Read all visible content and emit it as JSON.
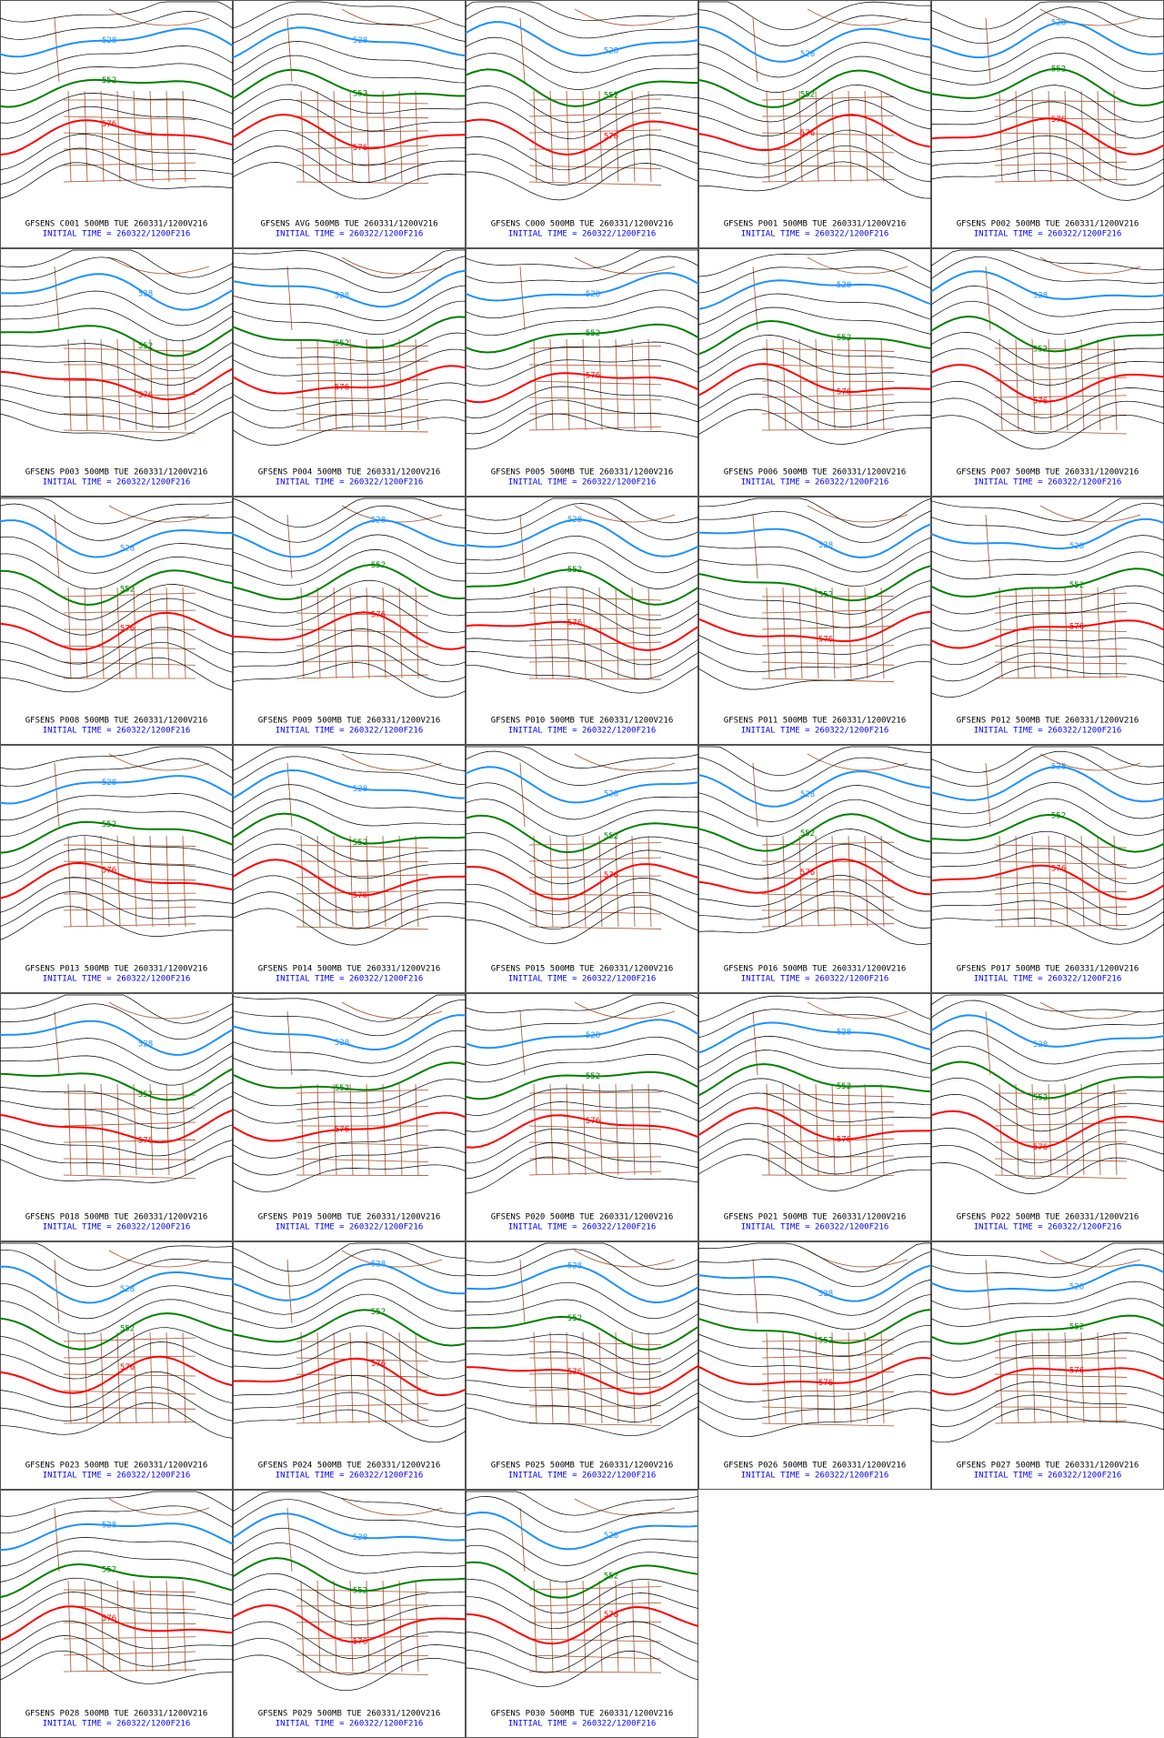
{
  "panels": [
    {
      "title": "GFSENS C001 500MB TUE 260331/1200V216",
      "init": "INITIAL TIME = 260322/1200F216",
      "contours": [
        "528",
        "552",
        "576"
      ]
    },
    {
      "title": "GFSENS AVG 500MB TUE 260331/1200V216",
      "init": "INITIAL TIME = 260322/1200F216",
      "contours": [
        "528",
        "552",
        "576"
      ]
    },
    {
      "title": "GFSENS C000 500MB TUE 260331/1200V216",
      "init": "INITIAL TIME = 260322/1200F216",
      "contours": [
        "528",
        "552",
        "576"
      ]
    },
    {
      "title": "GFSENS P001 500MB TUE 260331/1200V216",
      "init": "INITIAL TIME = 260322/1200F216",
      "contours": [
        "528",
        "552",
        "576"
      ]
    },
    {
      "title": "GFSENS P002 500MB TUE 260331/1200V216",
      "init": "INITIAL TIME = 260322/1200F216",
      "contours": [
        "528",
        "552",
        "576"
      ]
    },
    {
      "title": "GFSENS P003 500MB TUE 260331/1200V216",
      "init": "INITIAL TIME = 260322/1200F216",
      "contours": [
        "528",
        "552",
        "576"
      ]
    },
    {
      "title": "GFSENS P004 500MB TUE 260331/1200V216",
      "init": "INITIAL TIME = 260322/1200F216",
      "contours": [
        "528",
        "552",
        "576"
      ]
    },
    {
      "title": "GFSENS P005 500MB TUE 260331/1200V216",
      "init": "INITIAL TIME = 260322/1200F216",
      "contours": [
        "528",
        "552",
        "576"
      ]
    },
    {
      "title": "GFSENS P006 500MB TUE 260331/1200V216",
      "init": "INITIAL TIME = 260322/1200F216",
      "contours": [
        "528",
        "552",
        "576"
      ]
    },
    {
      "title": "GFSENS P007 500MB TUE 260331/1200V216",
      "init": "INITIAL TIME = 260322/1200F216",
      "contours": [
        "528",
        "552",
        "576"
      ]
    },
    {
      "title": "GFSENS P008 500MB TUE 260331/1200V216",
      "init": "INITIAL TIME = 260322/1200F216",
      "contours": [
        "528",
        "552",
        "576"
      ]
    },
    {
      "title": "GFSENS P009 500MB TUE 260331/1200V216",
      "init": "INITIAL TIME = 260322/1200F216",
      "contours": [
        "528",
        "552",
        "576"
      ]
    },
    {
      "title": "GFSENS P010 500MB TUE 260331/1200V216",
      "init": "INITIAL TIME = 260322/1200F216",
      "contours": [
        "528",
        "552",
        "576"
      ]
    },
    {
      "title": "GFSENS P011 500MB TUE 260331/1200V216",
      "init": "INITIAL TIME = 260322/1200F216",
      "contours": [
        "528",
        "552",
        "576"
      ]
    },
    {
      "title": "GFSENS P012 500MB TUE 260331/1200V216",
      "init": "INITIAL TIME = 260322/1200F216",
      "contours": [
        "528",
        "552",
        "576"
      ]
    },
    {
      "title": "GFSENS P013 500MB TUE 260331/1200V216",
      "init": "INITIAL TIME = 260322/1200F216",
      "contours": [
        "528",
        "552",
        "576"
      ]
    },
    {
      "title": "GFSENS P014 500MB TUE 260331/1200V216",
      "init": "INITIAL TIME = 260322/1200F216",
      "contours": [
        "528",
        "552",
        "576"
      ]
    },
    {
      "title": "GFSENS P015 500MB TUE 260331/1200V216",
      "init": "INITIAL TIME = 260322/1200F216",
      "contours": [
        "528",
        "552",
        "576"
      ]
    },
    {
      "title": "GFSENS P016 500MB TUE 260331/1200V216",
      "init": "INITIAL TIME = 260322/1200F216",
      "contours": [
        "528",
        "552",
        "576"
      ]
    },
    {
      "title": "GFSENS P017 500MB TUE 260331/1200V216",
      "init": "INITIAL TIME = 260322/1200F216",
      "contours": [
        "528",
        "552",
        "576"
      ]
    },
    {
      "title": "GFSENS P018 500MB TUE 260331/1200V216",
      "init": "INITIAL TIME = 260322/1200F216",
      "contours": [
        "528",
        "552",
        "576"
      ]
    },
    {
      "title": "GFSENS P019 500MB TUE 260331/1200V216",
      "init": "INITIAL TIME = 260322/1200F216",
      "contours": [
        "528",
        "552",
        "576"
      ]
    },
    {
      "title": "GFSENS P020 500MB TUE 260331/1200V216",
      "init": "INITIAL TIME = 260322/1200F216",
      "contours": [
        "528",
        "552",
        "576"
      ]
    },
    {
      "title": "GFSENS P021 500MB TUE 260331/1200V216",
      "init": "INITIAL TIME = 260322/1200F216",
      "contours": [
        "528",
        "552",
        "576"
      ]
    },
    {
      "title": "GFSENS P022 500MB TUE 260331/1200V216",
      "init": "INITIAL TIME = 260322/1200F216",
      "contours": [
        "528",
        "552",
        "576"
      ]
    },
    {
      "title": "GFSENS P023 500MB TUE 260331/1200V216",
      "init": "INITIAL TIME = 260322/1200F216",
      "contours": [
        "528",
        "552",
        "576"
      ]
    },
    {
      "title": "GFSENS P024 500MB TUE 260331/1200V216",
      "init": "INITIAL TIME = 260322/1200F216",
      "contours": [
        "528",
        "552",
        "576"
      ]
    },
    {
      "title": "GFSENS P025 500MB TUE 260331/1200V216",
      "init": "INITIAL TIME = 260322/1200F216",
      "contours": [
        "528",
        "552",
        "576"
      ]
    },
    {
      "title": "GFSENS P026 500MB TUE 260331/1200V216",
      "init": "INITIAL TIME = 260322/1200F216",
      "contours": [
        "528",
        "552",
        "576"
      ]
    },
    {
      "title": "GFSENS P027 500MB TUE 260331/1200V216",
      "init": "INITIAL TIME = 260322/1200F216",
      "contours": [
        "528",
        "552",
        "576"
      ]
    },
    {
      "title": "GFSENS P028 500MB TUE 260331/1200V216",
      "init": "INITIAL TIME = 260322/1200F216",
      "contours": [
        "528",
        "552",
        "576"
      ]
    },
    {
      "title": "GFSENS P029 500MB TUE 260331/1200V216",
      "init": "INITIAL TIME = 260322/1200F216",
      "contours": [
        "528",
        "552",
        "576"
      ]
    },
    {
      "title": "GFSENS P030 500MB TUE 260331/1200V216",
      "init": "INITIAL TIME = 260322/1200F216",
      "contours": [
        "528",
        "552",
        "576"
      ]
    }
  ]
}
